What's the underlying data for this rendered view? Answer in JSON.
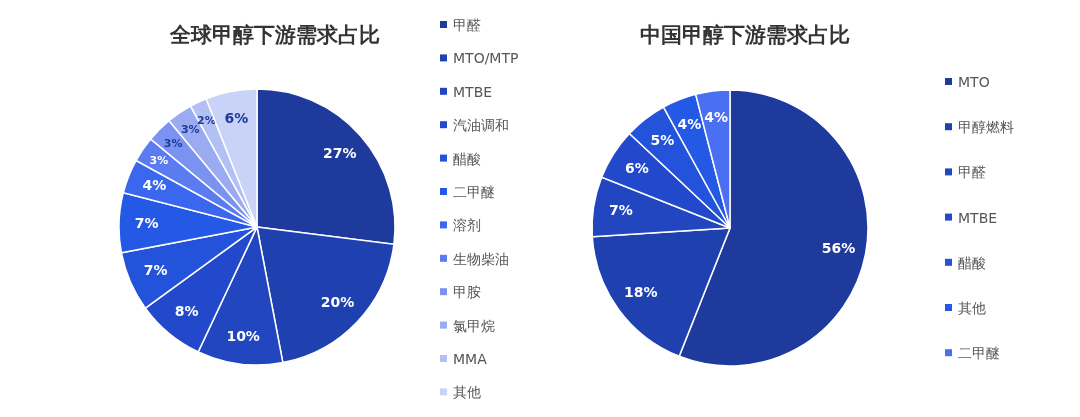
{
  "chart_data": [
    {
      "type": "pie",
      "title": "全球甲醇下游需求占比",
      "legend": "right",
      "categories": [
        "甲醛",
        "MTO/MTP",
        "MTBE",
        "汽油调和",
        "醋酸",
        "二甲醚",
        "溶剂",
        "生物柴油",
        "甲胺",
        "氯甲烷",
        "MMA",
        "其他"
      ],
      "values": [
        27,
        20,
        10,
        8,
        7,
        7,
        4,
        3,
        3,
        3,
        2,
        6
      ],
      "value_labels": [
        "27%",
        "20%",
        "10%",
        "8%",
        "7%",
        "7%",
        "4%",
        "3%",
        "3%",
        "3%",
        "2%",
        "6%"
      ],
      "colors": [
        "#1e3a9c",
        "#1f41b0",
        "#2146c0",
        "#2249cc",
        "#2352db",
        "#2459e6",
        "#3b66ee",
        "#5a7cf0",
        "#7b93f0",
        "#9aabf2",
        "#b3c0f4",
        "#c9d2f7"
      ]
    },
    {
      "type": "pie",
      "title": "中国甲醇下游需求占比",
      "legend": "right",
      "categories": [
        "MTO",
        "甲醇燃料",
        "甲醛",
        "MTBE",
        "醋酸",
        "其他",
        "二甲醚"
      ],
      "values": [
        56,
        18,
        7,
        6,
        5,
        4,
        4
      ],
      "value_labels": [
        "56%",
        "18%",
        "7%",
        "6%",
        "5%",
        "4%",
        "4%"
      ],
      "colors": [
        "#1e3a9c",
        "#1f41b0",
        "#2146c0",
        "#2249cc",
        "#2352db",
        "#2459e6",
        "#4a6ff0"
      ]
    }
  ]
}
